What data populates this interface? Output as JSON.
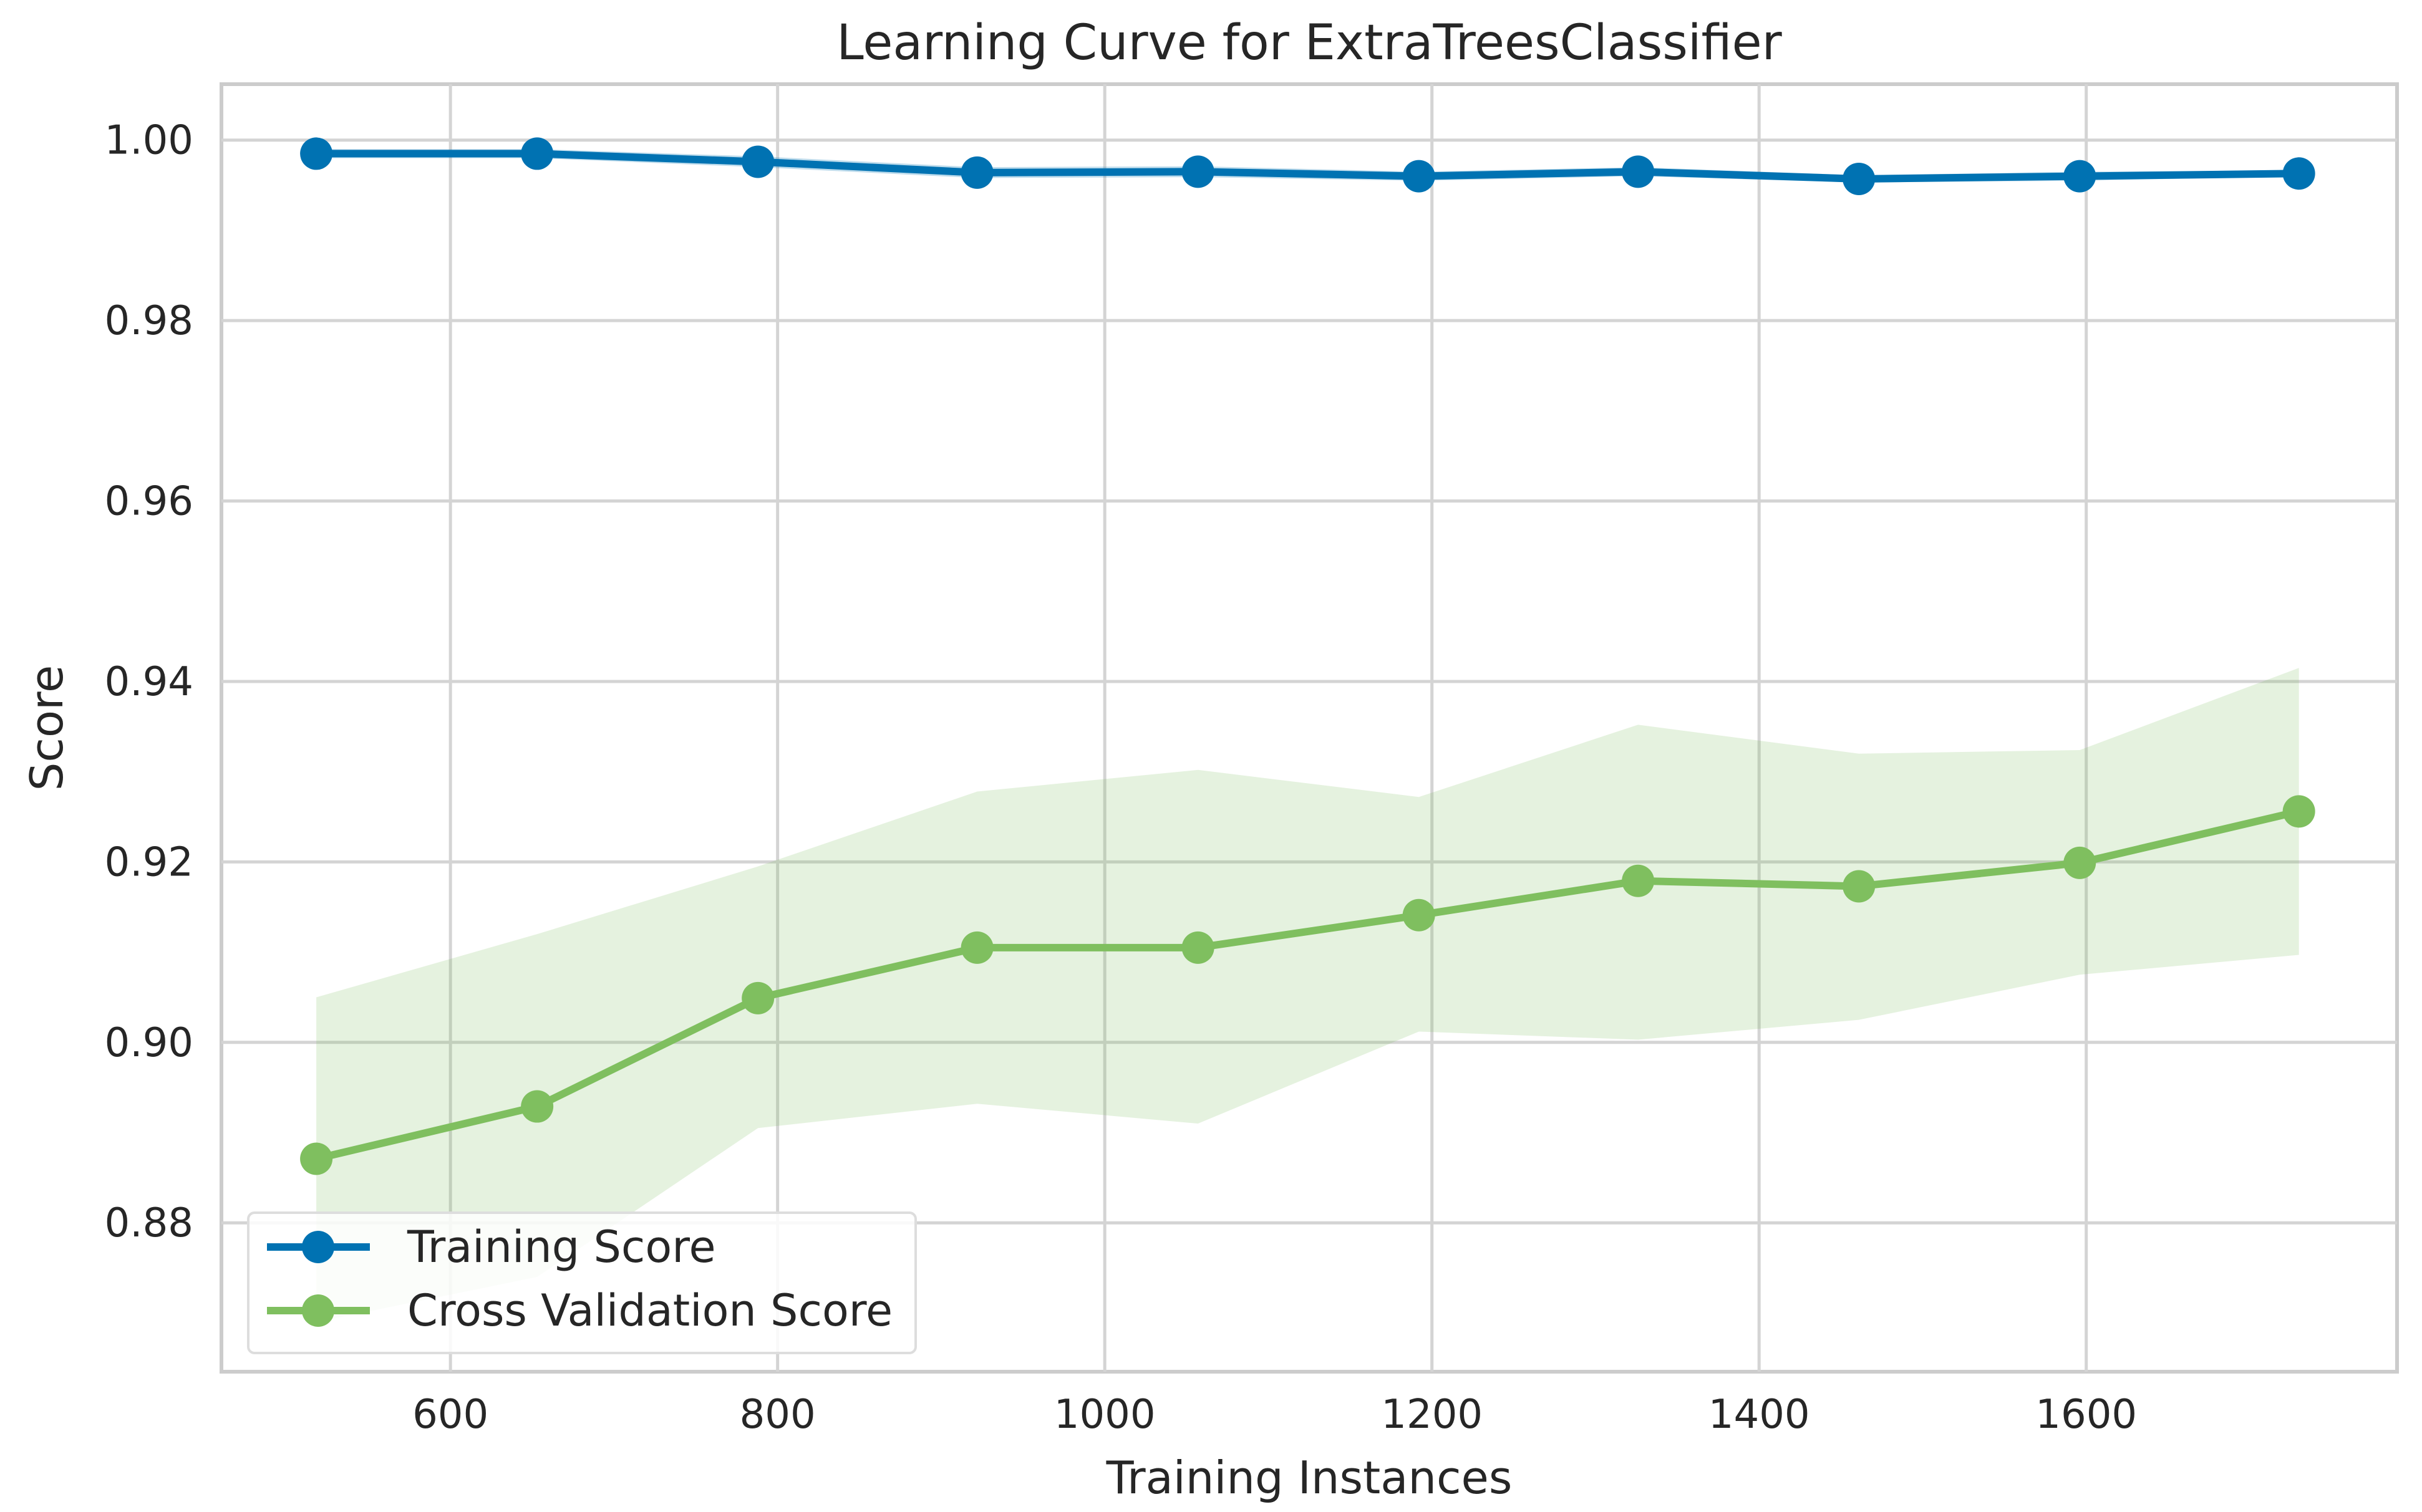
{
  "chart_data": {
    "type": "line",
    "title": "Learning Curve for ExtraTreesClassifier",
    "xlabel": "Training Instances",
    "ylabel": "Score",
    "xlim": [
      460,
      1790
    ],
    "ylim": [
      0.8635,
      1.0062
    ],
    "xticks": [
      600,
      800,
      1000,
      1200,
      1400,
      1600
    ],
    "xtick_labels": [
      "600",
      "800",
      "1000",
      "1200",
      "1400",
      "1600"
    ],
    "yticks": [
      0.88,
      0.9,
      0.92,
      0.94,
      0.96,
      0.98,
      1.0
    ],
    "ytick_labels": [
      "0.88",
      "0.90",
      "0.92",
      "0.94",
      "0.96",
      "0.98",
      "1.00"
    ],
    "grid": true,
    "legend_position": "lower-left",
    "x": [
      518,
      653,
      788,
      922,
      1057,
      1192,
      1326,
      1461,
      1596,
      1730
    ],
    "series": [
      {
        "name": "Training Score",
        "color": "#0072B2",
        "values": [
          0.9985,
          0.9985,
          0.9976,
          0.9964,
          0.9965,
          0.996,
          0.9965,
          0.9957,
          0.996,
          0.9963
        ],
        "lower": [
          0.998,
          0.998,
          0.997,
          0.9958,
          0.9959,
          0.9955,
          0.996,
          0.9953,
          0.9955,
          0.996
        ],
        "upper": [
          0.999,
          0.999,
          0.9982,
          0.997,
          0.9971,
          0.9965,
          0.997,
          0.9961,
          0.9965,
          0.9966
        ]
      },
      {
        "name": "Cross Validation Score",
        "color": "#7FBF5F",
        "values": [
          0.8871,
          0.8929,
          0.9049,
          0.9105,
          0.9105,
          0.9141,
          0.9179,
          0.9173,
          0.9199,
          0.9256
        ],
        "lower": [
          0.869,
          0.874,
          0.8905,
          0.8932,
          0.891,
          0.9012,
          0.9003,
          0.9025,
          0.9075,
          0.9097
        ],
        "upper": [
          0.905,
          0.912,
          0.9195,
          0.9278,
          0.9302,
          0.9272,
          0.9352,
          0.932,
          0.9324,
          0.9415
        ]
      }
    ]
  }
}
